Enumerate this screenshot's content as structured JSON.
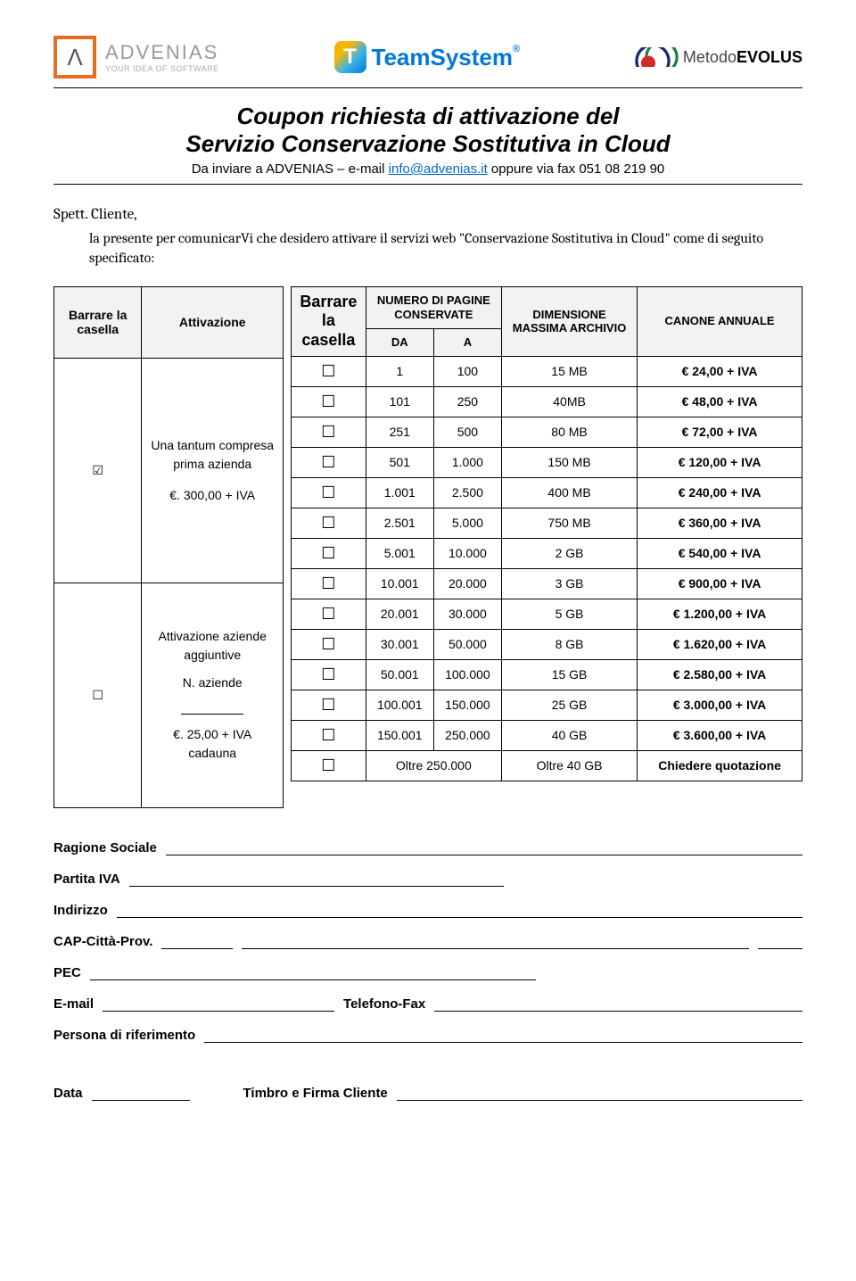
{
  "logos": {
    "advenias": {
      "mark": "Λ",
      "name": "ADVENIAS",
      "tagline": "YOUR IDEA OF SOFTWARE"
    },
    "teamsystem": {
      "mark": "T",
      "name": "TeamSystem",
      "reg": "®"
    },
    "evolus": {
      "prefix": "Metodo",
      "name": "EVOLUS"
    }
  },
  "title": {
    "line1": "Coupon richiesta di attivazione del",
    "line2": "Servizio Conservazione Sostitutiva in Cloud",
    "sub_prefix": "Da inviare a ADVENIAS – e-mail ",
    "link": "info@advenias.it",
    "sub_suffix": " oppure via fax 051 08 219 90"
  },
  "salutation": "Spett. Cliente,",
  "intro": "la presente per comunicarVi che desidero attivare il servizi web \"Conservazione Sostitutiva in Cloud\" come di seguito specificato:",
  "left_table": {
    "h1": "Barrare la casella",
    "h2": "Attivazione",
    "r1_checked": true,
    "r1_text_l1": "Una tantum compresa prima azienda",
    "r1_text_l2": "€. 300,00 + IVA",
    "r2_checked": false,
    "r2_text_l1": "Attivazione aziende aggiuntive",
    "r2_text_l2": "N. aziende",
    "r2_text_l3": "€. 25,00 + IVA cadauna"
  },
  "right_table": {
    "h_box": "Barrare la casella",
    "h_pages": "NUMERO DI PAGINE CONSERVATE",
    "h_da": "DA",
    "h_a": "A",
    "h_dim": "DIMENSIONE MASSIMA ARCHIVIO",
    "h_can": "CANONE ANNUALE",
    "rows": [
      {
        "da": "1",
        "a": "100",
        "dim": "15 MB",
        "can": "€ 24,00 + IVA"
      },
      {
        "da": "101",
        "a": "250",
        "dim": "40MB",
        "can": "€ 48,00 + IVA"
      },
      {
        "da": "251",
        "a": "500",
        "dim": "80 MB",
        "can": "€ 72,00 + IVA"
      },
      {
        "da": "501",
        "a": "1.000",
        "dim": "150 MB",
        "can": "€ 120,00 + IVA"
      },
      {
        "da": "1.001",
        "a": "2.500",
        "dim": "400 MB",
        "can": "€ 240,00 + IVA"
      },
      {
        "da": "2.501",
        "a": "5.000",
        "dim": "750 MB",
        "can": "€ 360,00 + IVA"
      },
      {
        "da": "5.001",
        "a": "10.000",
        "dim": "2 GB",
        "can": "€ 540,00 + IVA"
      },
      {
        "da": "10.001",
        "a": "20.000",
        "dim": "3 GB",
        "can": "€ 900,00 + IVA"
      },
      {
        "da": "20.001",
        "a": "30.000",
        "dim": "5 GB",
        "can": "€ 1.200,00 + IVA"
      },
      {
        "da": "30.001",
        "a": "50.000",
        "dim": "8 GB",
        "can": "€ 1.620,00 + IVA"
      },
      {
        "da": "50.001",
        "a": "100.000",
        "dim": "15 GB",
        "can": "€ 2.580,00 + IVA"
      },
      {
        "da": "100.001",
        "a": "150.000",
        "dim": "25 GB",
        "can": "€ 3.000,00 + IVA"
      },
      {
        "da": "150.001",
        "a": "250.000",
        "dim": "40 GB",
        "can": "€ 3.600,00 + IVA"
      }
    ],
    "last": {
      "pages": "Oltre 250.000",
      "dim": "Oltre 40 GB",
      "can": "Chiedere quotazione"
    }
  },
  "form": {
    "ragione": "Ragione Sociale",
    "piva": "Partita IVA",
    "indirizzo": "Indirizzo",
    "cap": "CAP-Città-Prov.",
    "pec": "PEC",
    "email": "E-mail",
    "telefax": "Telefono-Fax",
    "persona": "Persona di riferimento",
    "data": "Data",
    "timbro": "Timbro e Firma Cliente"
  }
}
